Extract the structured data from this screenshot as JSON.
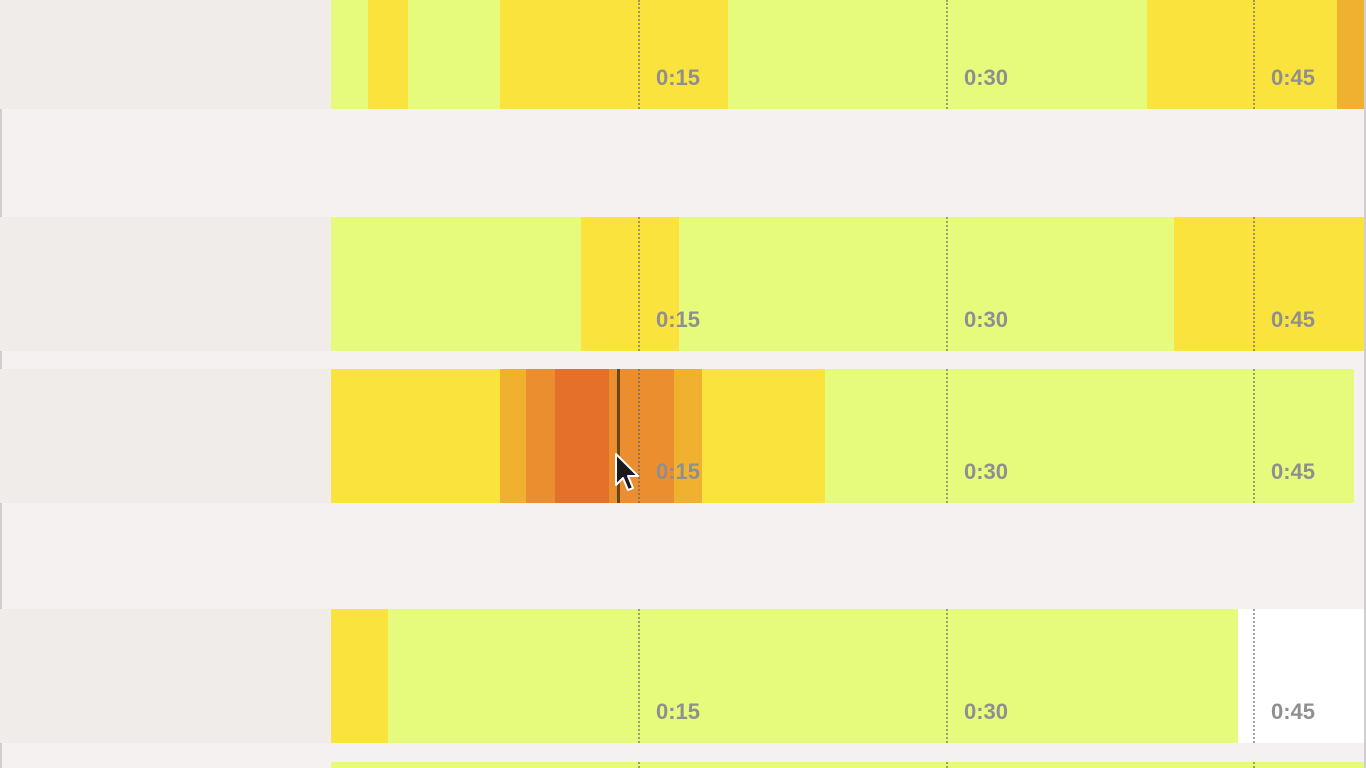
{
  "colors": {
    "page_bg": "#f5f1f1",
    "label_bg": "#efece9",
    "level_0": "#e6fb7c",
    "level_1": "#fbe33d",
    "level_2": "#f0b12e",
    "level_3": "#ea8e30",
    "level_4": "#e4702a",
    "empty": "#ffffff",
    "playhead": "#6b4513"
  },
  "tick_labels": [
    "0:15",
    "0:30",
    "0:45"
  ],
  "rows": [
    {
      "id": "row-1"
    },
    {
      "id": "row-2"
    },
    {
      "id": "row-3",
      "has_playhead": true
    },
    {
      "id": "row-4"
    },
    {
      "id": "row-5"
    }
  ],
  "cursor": {
    "icon": "mouse-pointer-icon"
  }
}
